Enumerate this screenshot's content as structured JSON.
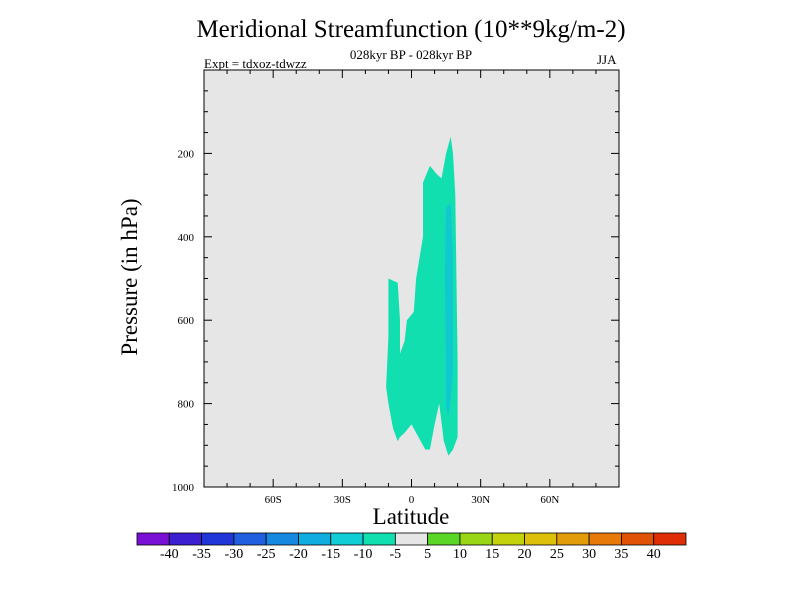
{
  "chart_data": {
    "type": "contour",
    "title": "Meridional Streamfunction (10**9kg/m-2)",
    "subtitle": "028kyr BP - 028kyr BP",
    "expt_label": "Expt = tdxoz-tdwzz",
    "season": "JJA",
    "xlabel": "Latitude",
    "ylabel": "Pressure (in hPa)",
    "x_ticks": [
      "60S",
      "30S",
      "0",
      "30N",
      "60N"
    ],
    "y_ticks": [
      "200",
      "400",
      "600",
      "800",
      "1000"
    ],
    "xlim": [
      -90,
      90
    ],
    "ylim": [
      1000,
      0
    ],
    "y_reversed": true,
    "background_color": "#e6e6e6",
    "colorbar": {
      "labels": [
        "-40",
        "-35",
        "-30",
        "-25",
        "-20",
        "-15",
        "-10",
        "-5",
        "5",
        "10",
        "15",
        "20",
        "25",
        "30",
        "35",
        "40"
      ],
      "colors": [
        "#7a10d6",
        "#3b1fd0",
        "#2136d8",
        "#1f5fe0",
        "#1589e0",
        "#10aee0",
        "#10cdd6",
        "#12dfb0",
        "#e6e6e6",
        "#5ad626",
        "#98d616",
        "#c4d20c",
        "#dcc00a",
        "#e39c09",
        "#e77908",
        "#e25206",
        "#df2e06"
      ]
    },
    "regions": [
      {
        "level": "-10 to -5",
        "color": "#12dfb0",
        "outline": [
          [
            -10,
            500
          ],
          [
            -6,
            510
          ],
          [
            -5,
            600
          ],
          [
            -5,
            680
          ],
          [
            -3,
            650
          ],
          [
            -2,
            600
          ],
          [
            1,
            580
          ],
          [
            2,
            500
          ],
          [
            5,
            400
          ],
          [
            5,
            270
          ],
          [
            8,
            230
          ],
          [
            11,
            250
          ],
          [
            13,
            260
          ],
          [
            15,
            200
          ],
          [
            17,
            160
          ],
          [
            18,
            200
          ],
          [
            19,
            300
          ],
          [
            20,
            700
          ],
          [
            20,
            880
          ],
          [
            18,
            910
          ],
          [
            16,
            925
          ],
          [
            14,
            890
          ],
          [
            12,
            800
          ],
          [
            10,
            850
          ],
          [
            8,
            910
          ],
          [
            6,
            910
          ],
          [
            3,
            880
          ],
          [
            0,
            850
          ],
          [
            -3,
            870
          ],
          [
            -5,
            880
          ],
          [
            -6,
            890
          ],
          [
            -8,
            860
          ],
          [
            -10,
            800
          ],
          [
            -11,
            760
          ],
          [
            -10,
            640
          ]
        ]
      },
      {
        "level": "-15 to -10",
        "color": "#10c8d0",
        "outline": [
          [
            15,
            330
          ],
          [
            17,
            320
          ],
          [
            18,
            450
          ],
          [
            18,
            720
          ],
          [
            17,
            790
          ],
          [
            16,
            830
          ],
          [
            15,
            810
          ],
          [
            15,
            700
          ],
          [
            14.5,
            500
          ]
        ]
      }
    ]
  }
}
